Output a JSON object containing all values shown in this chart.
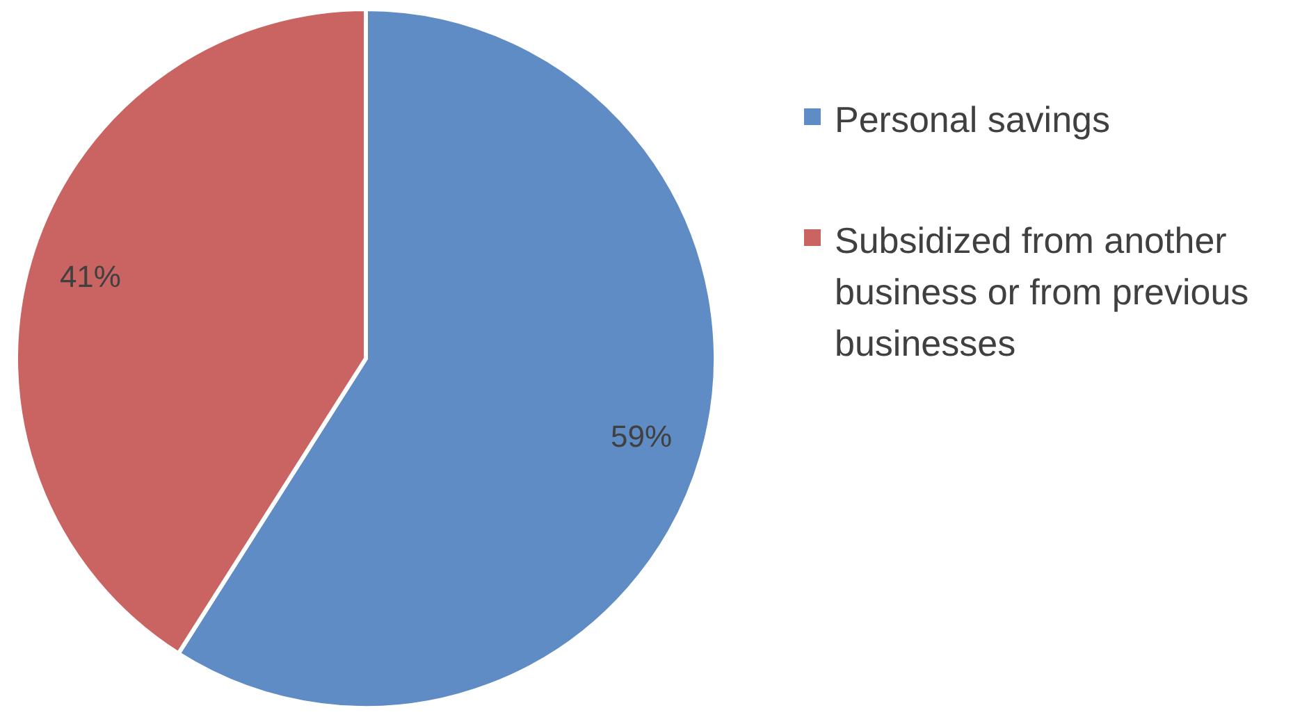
{
  "chart_data": {
    "type": "pie",
    "categories": [
      "Personal savings",
      "Subsidized from another business or from previous businesses"
    ],
    "values": [
      59,
      41
    ],
    "colors": [
      "#5f8cc5",
      "#c96462"
    ],
    "value_labels": [
      "59%",
      "41%"
    ],
    "legend": "right"
  }
}
